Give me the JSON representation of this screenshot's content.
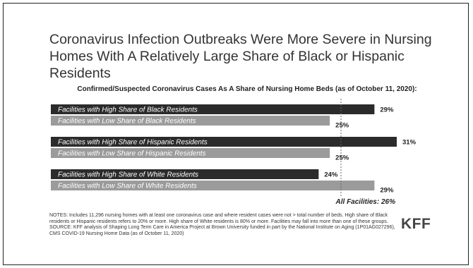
{
  "title": "Coronavirus Infection Outbreaks Were More Severe in Nursing Homes With A Relatively Large Share of Black or Hispanic Residents",
  "subtitle": "Confirmed/Suspected Coronavirus Cases As A Share of Nursing Home Beds (as of October 11, 2020):",
  "chart_data": {
    "type": "bar",
    "orientation": "horizontal",
    "categories": [
      "Facilities with High Share of Black Residents",
      "Facilities with Low Share of Black Residents",
      "Facilities with High Share of Hispanic Residents",
      "Facilities with Low Share of Hispanic Residents",
      "Facilities with High Share of White Residents",
      "Facilities with Low Share of White Residents"
    ],
    "values": [
      29,
      25,
      31,
      25,
      24,
      29
    ],
    "value_labels": [
      "29%",
      "25%",
      "31%",
      "25%",
      "24%",
      "29%"
    ],
    "groups": [
      "Black",
      "Black",
      "Hispanic",
      "Hispanic",
      "White",
      "White"
    ],
    "colors": {
      "high": "#2b2b2b",
      "low": "#9b9b9b"
    },
    "bar_shades": [
      "high",
      "low",
      "high",
      "low",
      "high",
      "low"
    ],
    "reference_line": {
      "value": 26,
      "label": "All Facilities: 26%"
    },
    "xlim": [
      0,
      31
    ],
    "grid": false,
    "legend": "none"
  },
  "notes": "NOTES: Includes 11,296 nursing homes with at least one coronavirus case and where resident cases were not > total number of beds. High share of Black residents or Hispanic residents refers to 20% or more. High share of White residents is 80% or more. Facilities may fall into more than one of these groups.",
  "source": "SOURCE: KFF analysis of Shaping Long Term Care in America Project at Brown University funded in part by the National Institute on Aging (1P01AG027296), CMS COVID-19 Nursing Home Data (as of October 11, 2020)",
  "logo": "KFF"
}
